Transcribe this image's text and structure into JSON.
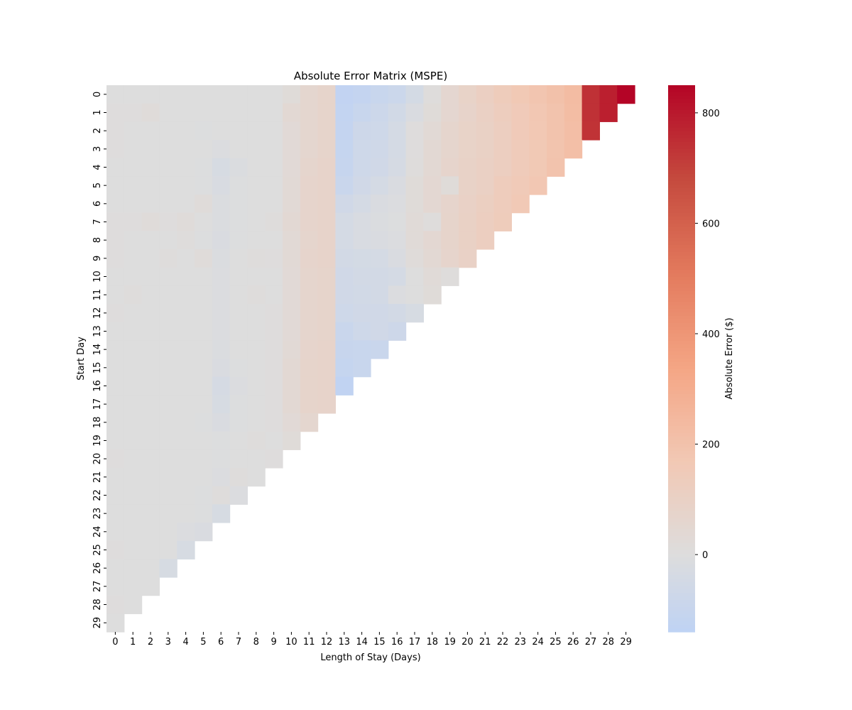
{
  "chart_data": {
    "type": "heatmap",
    "title": "Absolute Error Matrix (MSPE)",
    "xlabel": "Length of Stay (Days)",
    "ylabel": "Start Day",
    "x_categories": [
      "0",
      "1",
      "2",
      "3",
      "4",
      "5",
      "6",
      "7",
      "8",
      "9",
      "10",
      "11",
      "12",
      "13",
      "14",
      "15",
      "16",
      "17",
      "18",
      "19",
      "20",
      "21",
      "22",
      "23",
      "24",
      "25",
      "26",
      "27",
      "28",
      "29"
    ],
    "y_categories": [
      "0",
      "1",
      "2",
      "3",
      "4",
      "5",
      "6",
      "7",
      "8",
      "9",
      "10",
      "11",
      "12",
      "13",
      "14",
      "15",
      "16",
      "17",
      "18",
      "19",
      "20",
      "21",
      "22",
      "23",
      "24",
      "25",
      "26",
      "27",
      "28",
      "29"
    ],
    "mask": "cells where start_day + length_of_stay > 29 are empty",
    "values": [
      [
        0,
        0,
        0,
        0,
        0,
        0,
        0,
        0,
        0,
        0,
        20,
        60,
        75,
        -125,
        -115,
        -95,
        -85,
        -45,
        10,
        55,
        85,
        110,
        140,
        165,
        185,
        205,
        230,
        740,
        785,
        850
      ],
      [
        5,
        5,
        15,
        0,
        0,
        0,
        0,
        0,
        0,
        0,
        40,
        60,
        75,
        -120,
        -95,
        -80,
        -55,
        -20,
        20,
        55,
        80,
        105,
        130,
        150,
        175,
        195,
        225,
        740,
        785
      ],
      [
        5,
        0,
        0,
        0,
        0,
        -5,
        0,
        0,
        0,
        0,
        30,
        60,
        75,
        -115,
        -75,
        -70,
        -40,
        5,
        35,
        65,
        85,
        100,
        120,
        150,
        170,
        195,
        220,
        735
      ],
      [
        5,
        0,
        0,
        0,
        0,
        0,
        -10,
        0,
        0,
        0,
        30,
        60,
        75,
        -110,
        -70,
        -65,
        -40,
        5,
        40,
        65,
        85,
        100,
        120,
        145,
        165,
        190,
        215
      ],
      [
        0,
        0,
        0,
        0,
        0,
        -5,
        -30,
        -15,
        0,
        0,
        30,
        65,
        80,
        -105,
        -70,
        -60,
        -35,
        10,
        40,
        70,
        90,
        105,
        120,
        145,
        165,
        195
      ],
      [
        0,
        0,
        0,
        0,
        0,
        -5,
        -25,
        -5,
        0,
        0,
        35,
        70,
        80,
        -90,
        -60,
        -40,
        -20,
        20,
        45,
        20,
        90,
        105,
        135,
        155,
        175
      ],
      [
        0,
        0,
        0,
        0,
        0,
        15,
        -15,
        -5,
        0,
        0,
        35,
        70,
        80,
        -60,
        -40,
        -20,
        -10,
        20,
        45,
        70,
        95,
        115,
        135,
        160
      ],
      [
        5,
        5,
        15,
        5,
        15,
        0,
        -15,
        -5,
        0,
        10,
        40,
        70,
        80,
        -40,
        -25,
        -15,
        -5,
        25,
        10,
        75,
        100,
        120,
        140
      ],
      [
        5,
        0,
        0,
        0,
        10,
        -5,
        -20,
        -5,
        0,
        0,
        35,
        65,
        80,
        -40,
        -25,
        -20,
        -10,
        25,
        45,
        75,
        100,
        120
      ],
      [
        5,
        0,
        0,
        10,
        0,
        15,
        -15,
        0,
        10,
        5,
        35,
        70,
        80,
        -50,
        -45,
        -40,
        -20,
        15,
        40,
        70,
        95
      ],
      [
        0,
        0,
        0,
        0,
        0,
        0,
        -10,
        0,
        0,
        0,
        30,
        65,
        75,
        -60,
        -50,
        -50,
        -40,
        0,
        25,
        10
      ],
      [
        0,
        10,
        0,
        0,
        0,
        0,
        -10,
        0,
        10,
        0,
        30,
        65,
        75,
        -60,
        -55,
        -50,
        -10,
        0,
        20
      ],
      [
        5,
        0,
        0,
        0,
        0,
        0,
        -10,
        0,
        0,
        5,
        30,
        65,
        75,
        -70,
        -60,
        -60,
        -50,
        -30
      ],
      [
        0,
        0,
        0,
        0,
        0,
        0,
        -10,
        0,
        0,
        5,
        30,
        65,
        75,
        -90,
        -70,
        -60,
        -75
      ],
      [
        0,
        0,
        0,
        0,
        0,
        0,
        -15,
        0,
        0,
        5,
        35,
        70,
        80,
        -100,
        -95,
        -90
      ],
      [
        0,
        0,
        0,
        0,
        0,
        0,
        -20,
        -5,
        0,
        5,
        40,
        75,
        80,
        -110,
        -95
      ],
      [
        0,
        0,
        0,
        0,
        0,
        0,
        -35,
        -10,
        0,
        5,
        40,
        75,
        80,
        -130
      ],
      [
        0,
        0,
        0,
        0,
        0,
        0,
        -30,
        -5,
        0,
        5,
        40,
        75,
        80
      ],
      [
        0,
        0,
        0,
        0,
        0,
        -5,
        -20,
        -5,
        0,
        5,
        30,
        60
      ],
      [
        0,
        0,
        0,
        0,
        0,
        0,
        -5,
        0,
        10,
        0,
        20
      ],
      [
        5,
        0,
        0,
        0,
        0,
        0,
        -5,
        0,
        0,
        5
      ],
      [
        0,
        0,
        0,
        0,
        0,
        0,
        -10,
        10,
        0
      ],
      [
        0,
        0,
        0,
        0,
        0,
        -5,
        10,
        -10
      ],
      [
        0,
        0,
        0,
        0,
        0,
        -5,
        -30
      ],
      [
        0,
        0,
        0,
        0,
        -10,
        -20
      ],
      [
        5,
        0,
        0,
        0,
        -30
      ],
      [
        0,
        0,
        0,
        -30
      ],
      [
        0,
        0,
        0
      ],
      [
        5,
        0
      ],
      [
        0
      ]
    ],
    "colormap": "coolwarm",
    "vmin": -140,
    "vmax": 850,
    "center": 0,
    "colorbar": {
      "label": "Absolute Error ($)",
      "ticks": [
        0,
        200,
        400,
        600,
        800
      ],
      "tick_labels": [
        "0",
        "200",
        "400",
        "600",
        "800"
      ]
    }
  }
}
